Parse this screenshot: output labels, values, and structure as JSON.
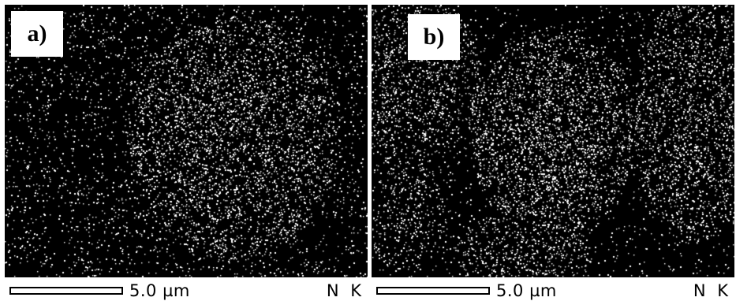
{
  "panels": [
    {
      "label": "a)",
      "scale_label": "5.0 µm",
      "element_label": "N K"
    },
    {
      "label": "b)",
      "scale_label": "5.0 µm",
      "element_label": "N K"
    }
  ],
  "colors": {
    "map_background": "#000000",
    "signal_dots": "#ffffff"
  }
}
